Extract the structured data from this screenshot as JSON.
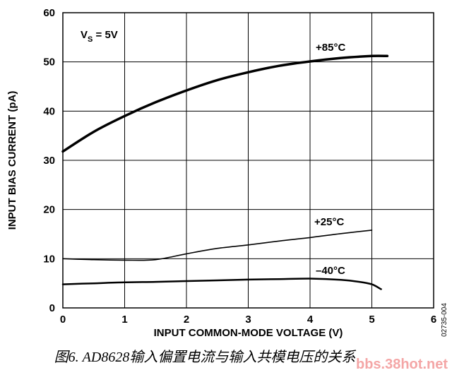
{
  "chart_data": {
    "type": "line",
    "xlabel": "INPUT COMMON-MODE VOLTAGE (V)",
    "ylabel": "INPUT BIAS CURRENT (pA)",
    "xlim": [
      0,
      6
    ],
    "ylim": [
      0,
      60
    ],
    "xticks": [
      0,
      1,
      2,
      3,
      4,
      5,
      6
    ],
    "yticks": [
      0,
      10,
      20,
      30,
      40,
      50,
      60
    ],
    "grid": true,
    "condition_prefix": "V",
    "condition_sub": "S",
    "condition_value": " = 5V",
    "figure_code": "02735-004",
    "series": [
      {
        "name": "+85°C",
        "x": [
          0,
          0.5,
          1,
          1.5,
          2,
          2.5,
          3,
          3.5,
          4,
          4.5,
          5,
          5.25
        ],
        "y": [
          31.8,
          35.8,
          39.0,
          41.8,
          44.2,
          46.3,
          47.9,
          49.2,
          50.1,
          50.8,
          51.2,
          51.2
        ]
      },
      {
        "name": "+25°C",
        "x": [
          0,
          0.5,
          1,
          1.5,
          2,
          2.5,
          3,
          3.5,
          4,
          4.5,
          5
        ],
        "y": [
          10.0,
          9.8,
          9.7,
          9.8,
          11.0,
          12.1,
          12.8,
          13.6,
          14.3,
          15.1,
          15.8
        ]
      },
      {
        "name": "–40°C",
        "x": [
          0,
          0.5,
          1,
          1.5,
          2,
          2.5,
          3,
          3.5,
          4,
          4.5,
          4.8,
          5.0,
          5.15
        ],
        "y": [
          4.8,
          5.0,
          5.2,
          5.3,
          5.45,
          5.6,
          5.75,
          5.85,
          5.95,
          5.7,
          5.3,
          4.8,
          3.8
        ]
      }
    ]
  },
  "caption": "图6. AD8628输入偏置电流与输入共模电压的关系",
  "watermark": "bbs.38hot.net"
}
